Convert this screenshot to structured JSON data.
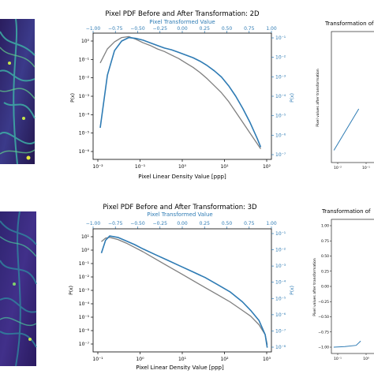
{
  "colors": {
    "before": "#7f7f7f",
    "after": "#2e7bb4",
    "axis": "#000000",
    "blue_axis": "#2e7bb4"
  },
  "charts": [
    {
      "title": "Pixel PDF Before and After Transformation: 2D",
      "top_axis_label": "Pixel Transformed Value",
      "xlabel": "Pixel Linear Density Value [ppp]",
      "ylabel_left": "P(x)",
      "ylabel_right": "P(x)",
      "bottom_ticks": [
        "10⁻²",
        "10⁻¹",
        "10⁰",
        "10¹",
        "10²"
      ],
      "top_ticks": [
        "−1.00",
        "−0.75",
        "−0.50",
        "−0.25",
        "0.00",
        "0.25",
        "0.50",
        "0.75",
        "1.00"
      ],
      "left_ticks": [
        "10⁰",
        "10⁻¹",
        "10⁻²",
        "10⁻³",
        "10⁻⁴",
        "10⁻⁵",
        "10⁻⁶"
      ],
      "right_ticks": [
        "10⁻¹",
        "10⁻²",
        "10⁻³",
        "10⁻⁴",
        "10⁻⁵",
        "10⁻⁶",
        "10⁻⁷"
      ]
    },
    {
      "title": "Pixel PDF Before and After Transformation: 3D",
      "top_axis_label": "Pixel Transformed Value",
      "xlabel": "Pixel Linear Density Value [ppp]",
      "ylabel_left": "P(x)",
      "ylabel_right": "P(x)",
      "bottom_ticks": [
        "10⁻¹",
        "10⁰",
        "10¹",
        "10²",
        "10³"
      ],
      "top_ticks": [
        "−1.00",
        "−0.75",
        "−0.50",
        "−0.25",
        "0.00",
        "0.25",
        "0.50",
        "0.75",
        "1.00"
      ],
      "left_ticks": [
        "10¹",
        "10⁰",
        "10⁻¹",
        "10⁻²",
        "10⁻³",
        "10⁻⁴",
        "10⁻⁵",
        "10⁻⁶",
        "10⁻⁷"
      ],
      "right_ticks": [
        "10⁻¹",
        "10⁻²",
        "10⁻³",
        "10⁻⁴",
        "10⁻⁵",
        "10⁻⁶",
        "10⁻⁷",
        "10⁻⁸"
      ]
    }
  ],
  "side_charts": [
    {
      "title": "Transformation of",
      "ylabel": "Pixel values after transformation",
      "y_ticks": [],
      "x_ticks": [
        "10⁻²",
        "10⁻¹"
      ]
    },
    {
      "title": "Transformation of",
      "ylabel": "Pixel values after transformation",
      "y_ticks": [
        "1.00",
        "0.75",
        "0.50",
        "0.25",
        "0.00",
        "−0.25",
        "−0.50",
        "−0.75",
        "−1.00"
      ],
      "x_ticks": [
        "10⁻¹",
        "10⁰"
      ]
    }
  ],
  "chart_data": [
    {
      "type": "line",
      "title": "Pixel PDF Before and After Transformation: 2D",
      "xlabel": "Pixel Linear Density Value [ppp]",
      "ylabel": "P(x)",
      "x_scale": "log",
      "y_scale": "log",
      "xlim_log10": [
        -2.1,
        2.9
      ],
      "ylim_log10": [
        -6.8,
        0.4
      ],
      "series": [
        {
          "x_log10": [
            -1.9,
            -1.7,
            -1.5,
            -1.3,
            -1.1,
            -0.9,
            -0.7,
            -0.5,
            -0.3,
            -0.1,
            0.1,
            0.3,
            0.5,
            0.7,
            0.9,
            1.1,
            1.3,
            1.5,
            1.7,
            1.9,
            2.1,
            2.3,
            2.5,
            2.6
          ],
          "y_log10": [
            -1.3,
            -0.5,
            -0.1,
            0.15,
            0.2,
            0.05,
            -0.15,
            -0.3,
            -0.5,
            -0.65,
            -0.85,
            -1.05,
            -1.3,
            -1.55,
            -1.85,
            -2.2,
            -2.6,
            -3.0,
            -3.5,
            -4.1,
            -4.7,
            -5.3,
            -5.9,
            -6.2
          ]
        },
        {
          "x_log10": [
            -1.9,
            -1.7,
            -1.5,
            -1.3,
            -1.1,
            -0.9,
            -0.7,
            -0.5,
            -0.3,
            -0.1,
            0.1,
            0.3,
            0.5,
            0.7,
            0.9,
            1.1,
            1.3,
            1.5,
            1.7,
            1.9,
            2.1,
            2.3,
            2.5,
            2.6
          ],
          "y_log10": [
            -5.0,
            -2.0,
            -0.6,
            -0.05,
            0.15,
            0.1,
            0.0,
            -0.15,
            -0.3,
            -0.45,
            -0.55,
            -0.7,
            -0.85,
            -1.0,
            -1.2,
            -1.45,
            -1.75,
            -2.1,
            -2.6,
            -3.2,
            -3.9,
            -4.7,
            -5.6,
            -6.1
          ]
        }
      ]
    },
    {
      "type": "line",
      "title": "Pixel PDF Before and After Transformation: 3D",
      "xlabel": "Pixel Linear Density Value [ppp]",
      "ylabel": "P(x)",
      "x_scale": "log",
      "y_scale": "log",
      "xlim_log10": [
        -1.2,
        3.1
      ],
      "ylim_log10": [
        -7.5,
        1.1
      ],
      "series": [
        {
          "x_log10": [
            -1.0,
            -0.9,
            -0.8,
            -0.6,
            -0.4,
            -0.2,
            0.0,
            0.3,
            0.6,
            0.9,
            1.2,
            1.5,
            1.8,
            2.1,
            2.4,
            2.6,
            2.8,
            2.95,
            3.0
          ],
          "y_log10": [
            0.2,
            0.45,
            0.5,
            0.35,
            0.1,
            -0.2,
            -0.5,
            -1.0,
            -1.5,
            -2.0,
            -2.5,
            -3.0,
            -3.5,
            -4.0,
            -4.6,
            -5.0,
            -5.6,
            -6.3,
            -7.0
          ],
          "name_hidden": false
        },
        {
          "x_log10": [
            -1.0,
            -0.9,
            -0.8,
            -0.6,
            -0.4,
            -0.2,
            0.0,
            0.3,
            0.6,
            0.9,
            1.2,
            1.5,
            1.8,
            2.1,
            2.4,
            2.6,
            2.8,
            2.95,
            3.0
          ],
          "y_log10": [
            -0.6,
            0.3,
            0.6,
            0.5,
            0.25,
            0.0,
            -0.3,
            -0.7,
            -1.1,
            -1.5,
            -1.9,
            -2.3,
            -2.8,
            -3.3,
            -4.0,
            -4.6,
            -5.3,
            -6.3,
            -7.2
          ]
        }
      ]
    },
    {
      "type": "line",
      "title": "Transformation of",
      "ylabel": "Pixel values after transformation",
      "x_scale": "log",
      "series": [
        {
          "x_log10": [
            -2.0,
            -1.0
          ],
          "y": [
            -0.9,
            -0.2
          ]
        }
      ]
    },
    {
      "type": "line",
      "title": "Transformation of",
      "ylabel": "Pixel values after transformation",
      "x_scale": "log",
      "ylim": [
        -1.0,
        1.0
      ],
      "series": [
        {
          "x_log10": [
            -1.0,
            -0.5,
            0.0,
            0.2
          ],
          "y": [
            -1.0,
            -0.99,
            -0.97,
            -0.9
          ]
        }
      ]
    }
  ]
}
